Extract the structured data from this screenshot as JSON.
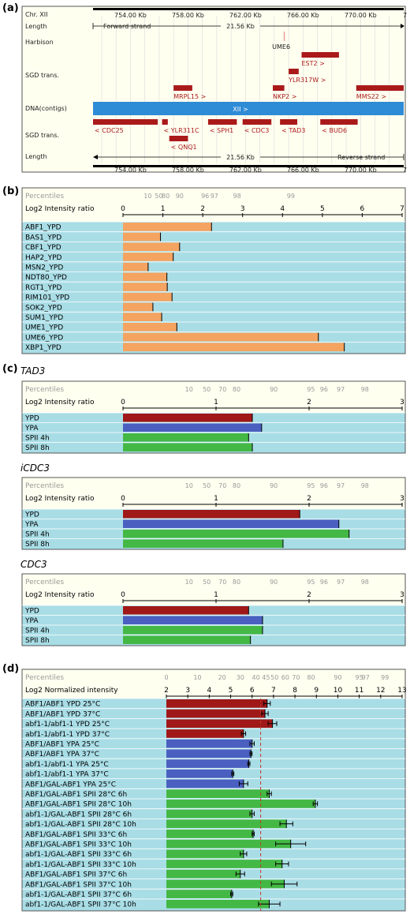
{
  "panels": {
    "a": "(a)",
    "b": "(b)",
    "c": "(c)",
    "d": "(d)"
  },
  "genome": {
    "chr_label": "Chr. XII",
    "length_label": "Length",
    "forward_strand": "Forward strand",
    "reverse_strand": "Reverse strand",
    "length_value": "21.56 Kb",
    "axis_ticks": [
      "754.00 Kb",
      "758.00 Kb",
      "762.00 Kb",
      "766.00 Kb",
      "770.00 Kb"
    ],
    "axis_range_kb": [
      751.4,
      773.0
    ],
    "track_harbison": "Harbison",
    "track_sgd_top": "SGD trans.",
    "track_dna": "DNA(contigs)",
    "track_sgd_bottom": "SGD trans.",
    "contig_label": "XII >",
    "harbison_features": [
      {
        "label": "UME6",
        "start_kb": 764.7,
        "end_kb": 764.8
      }
    ],
    "forward_genes": [
      {
        "label": "EST2 >",
        "start_kb": 765.9,
        "end_kb": 768.5,
        "row": 1
      },
      {
        "label": "YLR317W >",
        "start_kb": 765.0,
        "end_kb": 765.7,
        "row": 2
      },
      {
        "label": "MRPL15 >",
        "start_kb": 757.0,
        "end_kb": 758.3,
        "row": 3
      },
      {
        "label": "NKP2 >",
        "start_kb": 763.9,
        "end_kb": 764.7,
        "row": 3
      },
      {
        "label": "MMS22 >",
        "start_kb": 769.7,
        "end_kb": 773.0,
        "row": 3
      }
    ],
    "reverse_genes": [
      {
        "label": "< CDC25",
        "start_kb": 751.4,
        "end_kb": 755.9,
        "row": 1
      },
      {
        "label": "< YLR311C",
        "start_kb": 756.2,
        "end_kb": 756.6,
        "row": 1
      },
      {
        "label": "< SPH1",
        "start_kb": 759.4,
        "end_kb": 761.4,
        "row": 1
      },
      {
        "label": "< CDC3",
        "start_kb": 761.8,
        "end_kb": 763.8,
        "row": 1
      },
      {
        "label": "< TAD3",
        "start_kb": 764.4,
        "end_kb": 765.6,
        "row": 1
      },
      {
        "label": "< BUD6",
        "start_kb": 767.2,
        "end_kb": 769.8,
        "row": 1
      },
      {
        "label": "< QNQ1",
        "start_kb": 756.7,
        "end_kb": 758.0,
        "row": 2
      }
    ]
  },
  "chart_data": [
    {
      "type": "bar",
      "percentile_label": "Percentiles",
      "xlabel": "Log2 Intensity ratio",
      "xlim": [
        0,
        7
      ],
      "ticks": [
        0,
        1,
        2,
        3,
        4,
        5,
        6,
        7
      ],
      "percentile_ticks": [
        {
          "label": "10",
          "value": 0.62
        },
        {
          "label": "50",
          "value": 0.9
        },
        {
          "label": "80",
          "value": 1.07
        },
        {
          "label": "90",
          "value": 1.42
        },
        {
          "label": "96",
          "value": 2.06
        },
        {
          "label": "97",
          "value": 2.29
        },
        {
          "label": "98",
          "value": 2.86
        },
        {
          "label": "99",
          "value": 4.21
        }
      ],
      "categories": [
        "ABF1_YPD",
        "BAS1_YPD",
        "CBF1_YPD",
        "HAP2_YPD",
        "MSN2_YPD",
        "NDT80_YPD",
        "RGT1_YPD",
        "RIM101_YPD",
        "SOK2_YPD",
        "SUM1_YPD",
        "UME1_YPD",
        "UME6_YPD",
        "XBP1_YPD"
      ],
      "values": [
        2.22,
        0.94,
        1.42,
        1.26,
        0.63,
        1.1,
        1.11,
        1.23,
        0.75,
        0.97,
        1.35,
        4.9,
        5.55
      ],
      "colors": [
        "#f4a460"
      ]
    },
    {
      "type": "bar",
      "title": "TAD3",
      "percentile_label": "Percentiles",
      "xlabel": "Log2 Intensity ratio",
      "xlim": [
        0,
        3
      ],
      "ticks": [
        0,
        1,
        2,
        3
      ],
      "percentile_ticks": [
        {
          "label": "10",
          "value": 0.71
        },
        {
          "label": "50",
          "value": 0.9
        },
        {
          "label": "70",
          "value": 1.07
        },
        {
          "label": "80",
          "value": 1.22
        },
        {
          "label": "90",
          "value": 1.62
        },
        {
          "label": "95",
          "value": 2.02
        },
        {
          "label": "96",
          "value": 2.16
        },
        {
          "label": "97",
          "value": 2.34
        },
        {
          "label": "98",
          "value": 2.6
        }
      ],
      "categories": [
        "YPD",
        "YPA",
        "SPII 4h",
        "SPII 8h"
      ],
      "values": [
        1.39,
        1.49,
        1.35,
        1.39
      ],
      "colors": [
        "#a01818",
        "#4a5fc0",
        "#44b844",
        "#44b844"
      ]
    },
    {
      "type": "bar",
      "title": "iCDC3",
      "percentile_label": "Percentiles",
      "xlabel": "Log2 Intensity ratio",
      "xlim": [
        0,
        3
      ],
      "ticks": [
        0,
        1,
        2,
        3
      ],
      "percentile_ticks": [
        {
          "label": "10",
          "value": 0.71
        },
        {
          "label": "50",
          "value": 0.9
        },
        {
          "label": "70",
          "value": 1.07
        },
        {
          "label": "80",
          "value": 1.22
        },
        {
          "label": "90",
          "value": 1.62
        },
        {
          "label": "95",
          "value": 2.02
        },
        {
          "label": "96",
          "value": 2.16
        },
        {
          "label": "97",
          "value": 2.34
        },
        {
          "label": "98",
          "value": 2.6
        }
      ],
      "categories": [
        "YPD",
        "YPA",
        "SPII 4h",
        "SPII 8h"
      ],
      "values": [
        1.9,
        2.32,
        2.43,
        1.72
      ],
      "colors": [
        "#a01818",
        "#4a5fc0",
        "#44b844",
        "#44b844"
      ]
    },
    {
      "type": "bar",
      "title": "CDC3",
      "percentile_label": "Percentiles",
      "xlabel": "Log2 Intensity ratio",
      "xlim": [
        0,
        3
      ],
      "ticks": [
        0,
        1,
        2,
        3
      ],
      "percentile_ticks": [
        {
          "label": "10",
          "value": 0.71
        },
        {
          "label": "50",
          "value": 0.9
        },
        {
          "label": "70",
          "value": 1.07
        },
        {
          "label": "80",
          "value": 1.22
        },
        {
          "label": "90",
          "value": 1.62
        },
        {
          "label": "95",
          "value": 2.02
        },
        {
          "label": "96",
          "value": 2.16
        },
        {
          "label": "97",
          "value": 2.34
        },
        {
          "label": "98",
          "value": 2.6
        }
      ],
      "categories": [
        "YPD",
        "YPA",
        "SPII 4h",
        "SPII 8h"
      ],
      "values": [
        1.35,
        1.5,
        1.5,
        1.37
      ],
      "colors": [
        "#a01818",
        "#4a5fc0",
        "#44b844",
        "#44b844"
      ]
    },
    {
      "type": "bar",
      "percentile_label": "Percentiles",
      "xlabel": "Log2 Normalized intensity",
      "xlim": [
        2,
        13
      ],
      "ticks": [
        2,
        3,
        4,
        5,
        6,
        7,
        8,
        9,
        10,
        11,
        12,
        13
      ],
      "percentile_ticks": [
        {
          "label": "0",
          "value": 2.0
        },
        {
          "label": "10",
          "value": 3.45
        },
        {
          "label": "20",
          "value": 4.6
        },
        {
          "label": "30",
          "value": 5.45
        },
        {
          "label": "40",
          "value": 6.18
        },
        {
          "label": "45",
          "value": 6.65
        },
        {
          "label": "50",
          "value": 7.05
        },
        {
          "label": "60",
          "value": 7.55
        },
        {
          "label": "70",
          "value": 8.05
        },
        {
          "label": "80",
          "value": 8.75
        },
        {
          "label": "90",
          "value": 10.0
        },
        {
          "label": "95",
          "value": 11.0
        },
        {
          "label": "97",
          "value": 11.3
        },
        {
          "label": "99",
          "value": 12.2
        }
      ],
      "reference_line": 6.4,
      "categories": [
        "ABF1/ABF1 YPD 25°C",
        "ABF1/ABF1 YPD 37°C",
        "abf1-1/abf1-1 YPD 25°C",
        "abf1-1/abf1-1 YPD 37°C",
        "ABF1/ABF1 YPA 25°C",
        "ABF1/ABF1 YPA 37°C",
        "abf1-1/abf1-1 YPA 25°C",
        "abf1-1/abf1-1 YPA 37°C",
        "ABF1/GAL-ABF1 YPA 25°C",
        "ABF1/GAL-ABF1 SPII 28°C 6h",
        "ABF1/GAL-ABF1 SPII 28°C 10h",
        "abf1-1/GAL-ABF1 SPII 28°C 6h",
        "abf1-1/GAL-ABF1 SPII 28°C 10h",
        "ABF1/GAL-ABF1 SPII 33°C 6h",
        "ABF1/GAL-ABF1 SPII 33°C 10h",
        "abf1-1/GAL-ABF1 SPII 33°C 6h",
        "abf1-1/GAL-ABF1 SPII 33°C 10h",
        "ABF1/GAL-ABF1 SPII 37°C 6h",
        "ABF1/GAL-ABF1 SPII 37°C 10h",
        "abf1-1/GAL-ABF1 SPII 37°C 6h",
        "abf1-1/GAL-ABF1 SPII 37°C 10h"
      ],
      "values": [
        6.7,
        6.6,
        6.95,
        5.6,
        6.0,
        5.95,
        5.85,
        5.1,
        5.6,
        6.8,
        8.95,
        6.0,
        7.6,
        6.05,
        7.8,
        5.6,
        7.4,
        5.45,
        7.5,
        5.05,
        6.8
      ],
      "errors": [
        0.15,
        0.15,
        0.2,
        0.1,
        0.1,
        0.05,
        0.05,
        0.05,
        0.2,
        0.1,
        0.1,
        0.1,
        0.3,
        0.05,
        0.7,
        0.15,
        0.3,
        0.2,
        0.6,
        0.05,
        0.5
      ],
      "colors": [
        "#a01818",
        "#a01818",
        "#a01818",
        "#a01818",
        "#4a5fc0",
        "#4a5fc0",
        "#4a5fc0",
        "#4a5fc0",
        "#4a5fc0",
        "#44b844",
        "#44b844",
        "#44b844",
        "#44b844",
        "#44b844",
        "#44b844",
        "#44b844",
        "#44b844",
        "#44b844",
        "#44b844",
        "#44b844",
        "#44b844"
      ]
    }
  ]
}
